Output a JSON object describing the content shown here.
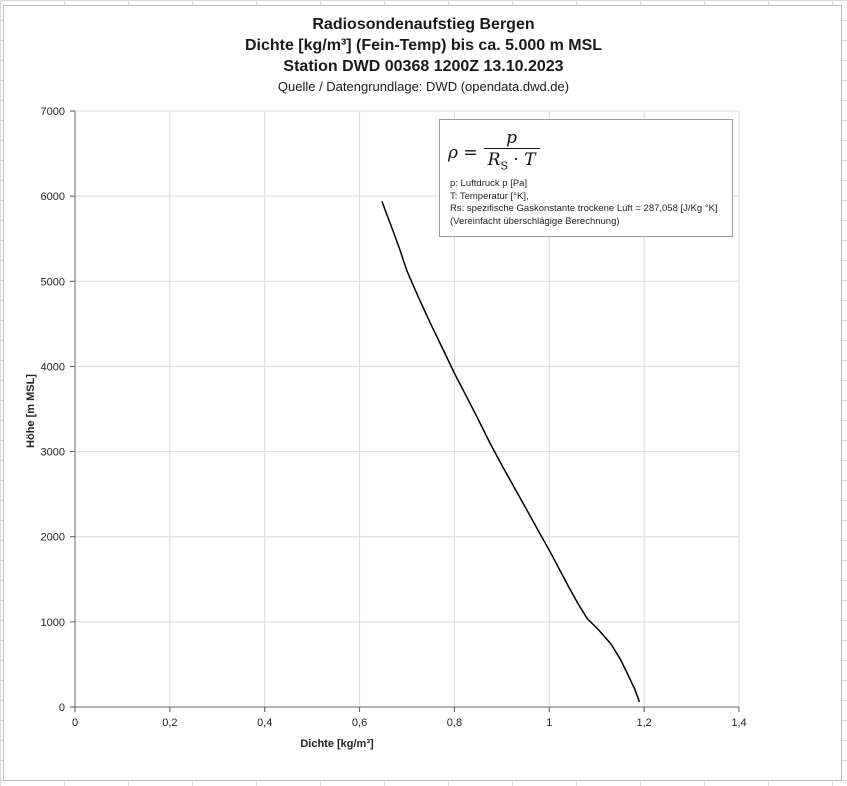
{
  "chart_data": {
    "type": "line",
    "title_lines": [
      "Radiosondenaufstieg Bergen",
      "Dichte [kg/m³] (Fein-Temp) bis ca. 5.000 m MSL",
      "Station DWD 00368 1200Z 13.10.2023"
    ],
    "source": "Quelle / Datengrundlage: DWD (opendata.dwd.de)",
    "xlabel": "Dichte [kg/m³]",
    "ylabel": "Höhe [m MSL]",
    "xlim": [
      0,
      1.4
    ],
    "ylim": [
      0,
      7000
    ],
    "x_ticks": [
      0,
      0.2,
      0.4,
      0.6,
      0.8,
      1.0,
      1.2,
      1.4
    ],
    "x_tick_labels": [
      "0",
      "0,2",
      "0,4",
      "0,6",
      "0,8",
      "1",
      "1,2",
      "1,4"
    ],
    "y_ticks": [
      0,
      1000,
      2000,
      3000,
      4000,
      5000,
      6000,
      7000
    ],
    "y_tick_labels": [
      "0",
      "1000",
      "2000",
      "3000",
      "4000",
      "5000",
      "6000",
      "7000"
    ],
    "grid": true,
    "series": [
      {
        "color": "#000000",
        "points": [
          [
            1.19,
            60
          ],
          [
            1.18,
            210
          ],
          [
            1.165,
            390
          ],
          [
            1.15,
            560
          ],
          [
            1.13,
            740
          ],
          [
            1.105,
            900
          ],
          [
            1.08,
            1040
          ],
          [
            1.06,
            1220
          ],
          [
            1.04,
            1420
          ],
          [
            1.02,
            1630
          ],
          [
            1.0,
            1840
          ],
          [
            0.975,
            2090
          ],
          [
            0.95,
            2340
          ],
          [
            0.925,
            2590
          ],
          [
            0.9,
            2840
          ],
          [
            0.875,
            3100
          ],
          [
            0.85,
            3380
          ],
          [
            0.825,
            3650
          ],
          [
            0.8,
            3920
          ],
          [
            0.775,
            4210
          ],
          [
            0.75,
            4500
          ],
          [
            0.725,
            4800
          ],
          [
            0.7,
            5120
          ],
          [
            0.685,
            5370
          ],
          [
            0.67,
            5600
          ],
          [
            0.655,
            5820
          ],
          [
            0.647,
            5940
          ]
        ]
      }
    ]
  },
  "formula_box": {
    "lhs": "ρ =",
    "numerator": "p",
    "denominator": "R",
    "denominator_sub": "S",
    "denominator_rest": "· T",
    "notes": [
      "p: Luftdruck p [Pa]",
      "T: Temperatur [°K],",
      "Rs: spezifische Gaskonstante trockene Luft = 287,058 [J/Kg °K]",
      "(Vereinfacht überschlägige Berechnung)"
    ]
  }
}
